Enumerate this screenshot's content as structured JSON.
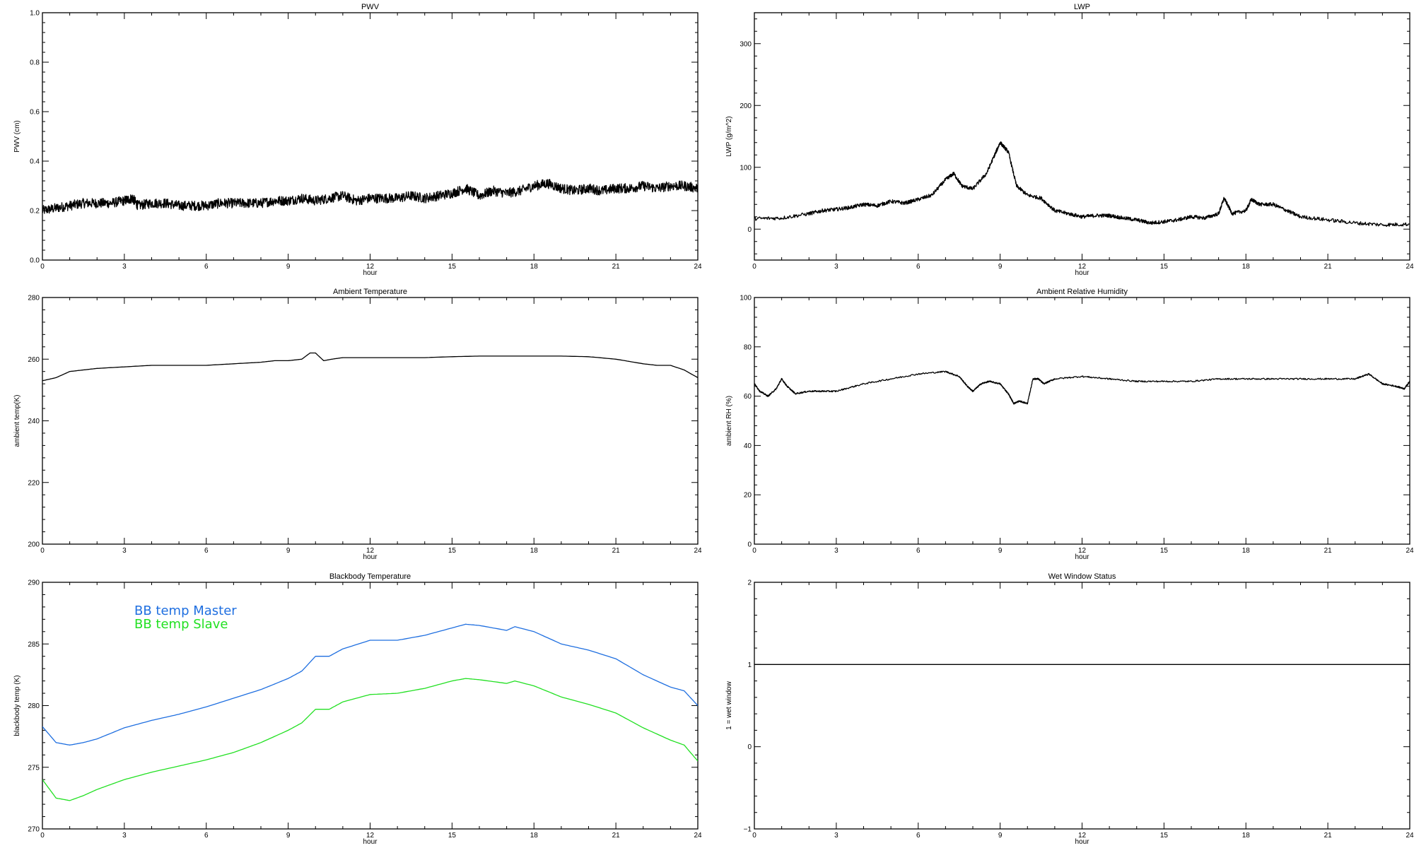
{
  "colors": {
    "black": "#000000",
    "master": "#1f6fe0",
    "slave": "#22e022"
  },
  "chart_data": [
    {
      "type": "line",
      "title": "PWV",
      "xlabel": "hour",
      "ylabel": "PWV (cm)",
      "xlim": [
        0,
        24
      ],
      "ylim": [
        0,
        1
      ],
      "xticks": [
        "0",
        "3",
        "6",
        "9",
        "12",
        "15",
        "18",
        "21",
        "24"
      ],
      "yticks": [
        "0.0",
        "0.2",
        "0.4",
        "0.6",
        "0.8",
        "1.0"
      ],
      "noise": 0.02,
      "series": [
        {
          "color": "#000000",
          "x": [
            0,
            0.5,
            1,
            1.5,
            2,
            2.5,
            3,
            3.3,
            3.5,
            4,
            4.5,
            5,
            5.5,
            6,
            6.5,
            7,
            7.5,
            8,
            8.5,
            9,
            9.5,
            10,
            10.5,
            11,
            11.5,
            12,
            12.5,
            13,
            13.5,
            14,
            14.5,
            15,
            15.5,
            16,
            16.5,
            17,
            17.5,
            18,
            18.5,
            19,
            19.5,
            20,
            20.5,
            21,
            21.5,
            22,
            22.5,
            23,
            23.5,
            24
          ],
          "y": [
            0.2,
            0.21,
            0.22,
            0.23,
            0.23,
            0.23,
            0.24,
            0.25,
            0.22,
            0.23,
            0.23,
            0.22,
            0.22,
            0.22,
            0.23,
            0.23,
            0.23,
            0.23,
            0.24,
            0.24,
            0.25,
            0.24,
            0.25,
            0.26,
            0.24,
            0.25,
            0.25,
            0.25,
            0.26,
            0.25,
            0.26,
            0.27,
            0.29,
            0.26,
            0.28,
            0.27,
            0.28,
            0.3,
            0.31,
            0.29,
            0.28,
            0.29,
            0.28,
            0.29,
            0.29,
            0.3,
            0.29,
            0.3,
            0.3,
            0.29
          ]
        }
      ]
    },
    {
      "type": "line",
      "title": "LWP",
      "xlabel": "hour",
      "ylabel": "LWP (g/m^2)",
      "xlim": [
        0,
        24
      ],
      "ylim": [
        -50,
        350
      ],
      "xticks": [
        "0",
        "3",
        "6",
        "9",
        "12",
        "15",
        "18",
        "21",
        "24"
      ],
      "yticks": [
        "0",
        "100",
        "200",
        "300"
      ],
      "noise": 3,
      "series": [
        {
          "color": "#000000",
          "x": [
            0,
            1,
            2,
            2.5,
            3,
            3.5,
            4,
            4.5,
            5,
            5.5,
            6,
            6.5,
            7,
            7.3,
            7.6,
            8,
            8.5,
            8.8,
            9,
            9.3,
            9.6,
            10,
            10.5,
            11,
            11.5,
            12,
            12.5,
            13,
            13.5,
            14,
            14.5,
            15,
            15.5,
            16,
            16.5,
            17,
            17.2,
            17.5,
            18,
            18.2,
            18.5,
            19,
            19.5,
            20,
            21,
            22,
            23,
            24
          ],
          "y": [
            17,
            18,
            25,
            30,
            32,
            35,
            40,
            38,
            45,
            42,
            48,
            55,
            80,
            90,
            70,
            65,
            90,
            120,
            140,
            125,
            70,
            55,
            50,
            30,
            25,
            20,
            22,
            22,
            18,
            15,
            10,
            12,
            15,
            20,
            18,
            25,
            50,
            25,
            30,
            48,
            40,
            40,
            30,
            20,
            15,
            10,
            7,
            8
          ]
        }
      ]
    },
    {
      "type": "line",
      "title": "Ambient Temperature",
      "xlabel": "hour",
      "ylabel": "ambient temp(K)",
      "xlim": [
        0,
        24
      ],
      "ylim": [
        200,
        280
      ],
      "xticks": [
        "0",
        "3",
        "6",
        "9",
        "12",
        "15",
        "18",
        "21",
        "24"
      ],
      "yticks": [
        "200",
        "220",
        "240",
        "260",
        "280"
      ],
      "noise": 0,
      "series": [
        {
          "color": "#000000",
          "x": [
            0,
            0.5,
            1,
            1.5,
            2,
            3,
            4,
            5,
            6,
            7,
            8,
            8.5,
            9,
            9.5,
            9.8,
            10,
            10.3,
            10.6,
            11,
            12,
            13,
            14,
            15,
            16,
            17,
            18,
            19,
            20,
            21,
            22,
            22.5,
            23,
            23.5,
            24
          ],
          "y": [
            253,
            254,
            256,
            256.5,
            257,
            257.5,
            258,
            258,
            258,
            258.5,
            259,
            259.5,
            259.5,
            260,
            262,
            262,
            259.5,
            260,
            260.5,
            260.5,
            260.5,
            260.5,
            260.8,
            261,
            261,
            261,
            261,
            260.8,
            260,
            258.5,
            258,
            258,
            256.5,
            254
          ]
        }
      ]
    },
    {
      "type": "line",
      "title": "Ambient Relative Humidity",
      "xlabel": "hour",
      "ylabel": "ambient RH (%)",
      "xlim": [
        0,
        24
      ],
      "ylim": [
        0,
        100
      ],
      "xticks": [
        "0",
        "3",
        "6",
        "9",
        "12",
        "15",
        "18",
        "21",
        "24"
      ],
      "yticks": [
        "0",
        "20",
        "40",
        "60",
        "80",
        "100"
      ],
      "noise": 0.3,
      "series": [
        {
          "color": "#000000",
          "x": [
            0,
            0.2,
            0.5,
            0.8,
            1,
            1.2,
            1.5,
            2,
            2.5,
            3,
            4,
            5,
            6,
            7,
            7.5,
            7.8,
            8,
            8.3,
            8.6,
            9,
            9.3,
            9.5,
            9.7,
            10,
            10.2,
            10.4,
            10.6,
            11,
            12,
            13,
            14,
            15,
            16,
            17,
            18,
            19,
            20,
            21,
            22,
            22.5,
            23,
            23.5,
            23.8,
            24
          ],
          "y": [
            65,
            62,
            60,
            63,
            67,
            64,
            61,
            62,
            62,
            62,
            65,
            67,
            69,
            70,
            68,
            64,
            62,
            65,
            66,
            65,
            61,
            57,
            58,
            57,
            67,
            67,
            65,
            67,
            68,
            67,
            66,
            66,
            66,
            67,
            67,
            67,
            67,
            67,
            67,
            69,
            65,
            64,
            63,
            66
          ]
        }
      ]
    },
    {
      "type": "line",
      "title": "Blackbody Temperature",
      "xlabel": "hour",
      "ylabel": "blackbody temp (K)",
      "xlim": [
        0,
        24
      ],
      "ylim": [
        270,
        290
      ],
      "xticks": [
        "0",
        "3",
        "6",
        "9",
        "12",
        "15",
        "18",
        "21",
        "24"
      ],
      "yticks": [
        "270",
        "275",
        "280",
        "285",
        "290"
      ],
      "noise": 0,
      "legend": "top-left",
      "series": [
        {
          "name": "BB temp Master",
          "color": "#1f6fe0",
          "x": [
            0,
            0.5,
            1,
            1.5,
            2,
            3,
            4,
            5,
            6,
            7,
            8,
            9,
            9.5,
            10,
            10.5,
            11,
            12,
            13,
            14,
            15,
            15.5,
            16,
            17,
            17.3,
            18,
            19,
            20,
            21,
            22,
            23,
            23.5,
            24
          ],
          "y": [
            278.3,
            277,
            276.8,
            277,
            277.3,
            278.2,
            278.8,
            279.3,
            279.9,
            280.6,
            281.3,
            282.2,
            282.8,
            284,
            284,
            284.6,
            285.3,
            285.3,
            285.7,
            286.3,
            286.6,
            286.5,
            286.1,
            286.4,
            286,
            285,
            284.5,
            283.8,
            282.5,
            281.5,
            281.2,
            280
          ]
        },
        {
          "name": "BB temp Slave",
          "color": "#22e022",
          "x": [
            0,
            0.5,
            1,
            1.5,
            2,
            3,
            4,
            5,
            6,
            7,
            8,
            9,
            9.5,
            10,
            10.5,
            11,
            12,
            13,
            14,
            15,
            15.5,
            16,
            17,
            17.3,
            18,
            19,
            20,
            21,
            22,
            23,
            23.5,
            24
          ],
          "y": [
            274,
            272.5,
            272.3,
            272.7,
            273.2,
            274,
            274.6,
            275.1,
            275.6,
            276.2,
            277,
            278,
            278.6,
            279.7,
            279.7,
            280.3,
            280.9,
            281,
            281.4,
            282,
            282.2,
            282.1,
            281.8,
            282,
            281.6,
            280.7,
            280.1,
            279.4,
            278.2,
            277.2,
            276.8,
            275.5
          ]
        }
      ]
    },
    {
      "type": "line",
      "title": "Wet Window Status",
      "xlabel": "hour",
      "ylabel": "1 = wet window",
      "xlim": [
        0,
        24
      ],
      "ylim": [
        -1,
        2
      ],
      "xticks": [
        "0",
        "3",
        "6",
        "9",
        "12",
        "15",
        "18",
        "21",
        "24"
      ],
      "yticks": [
        "−1",
        "0",
        "1",
        "2"
      ],
      "noise": 0,
      "series": [
        {
          "color": "#000000",
          "x": [
            0,
            24
          ],
          "y": [
            1,
            1
          ]
        }
      ]
    }
  ]
}
